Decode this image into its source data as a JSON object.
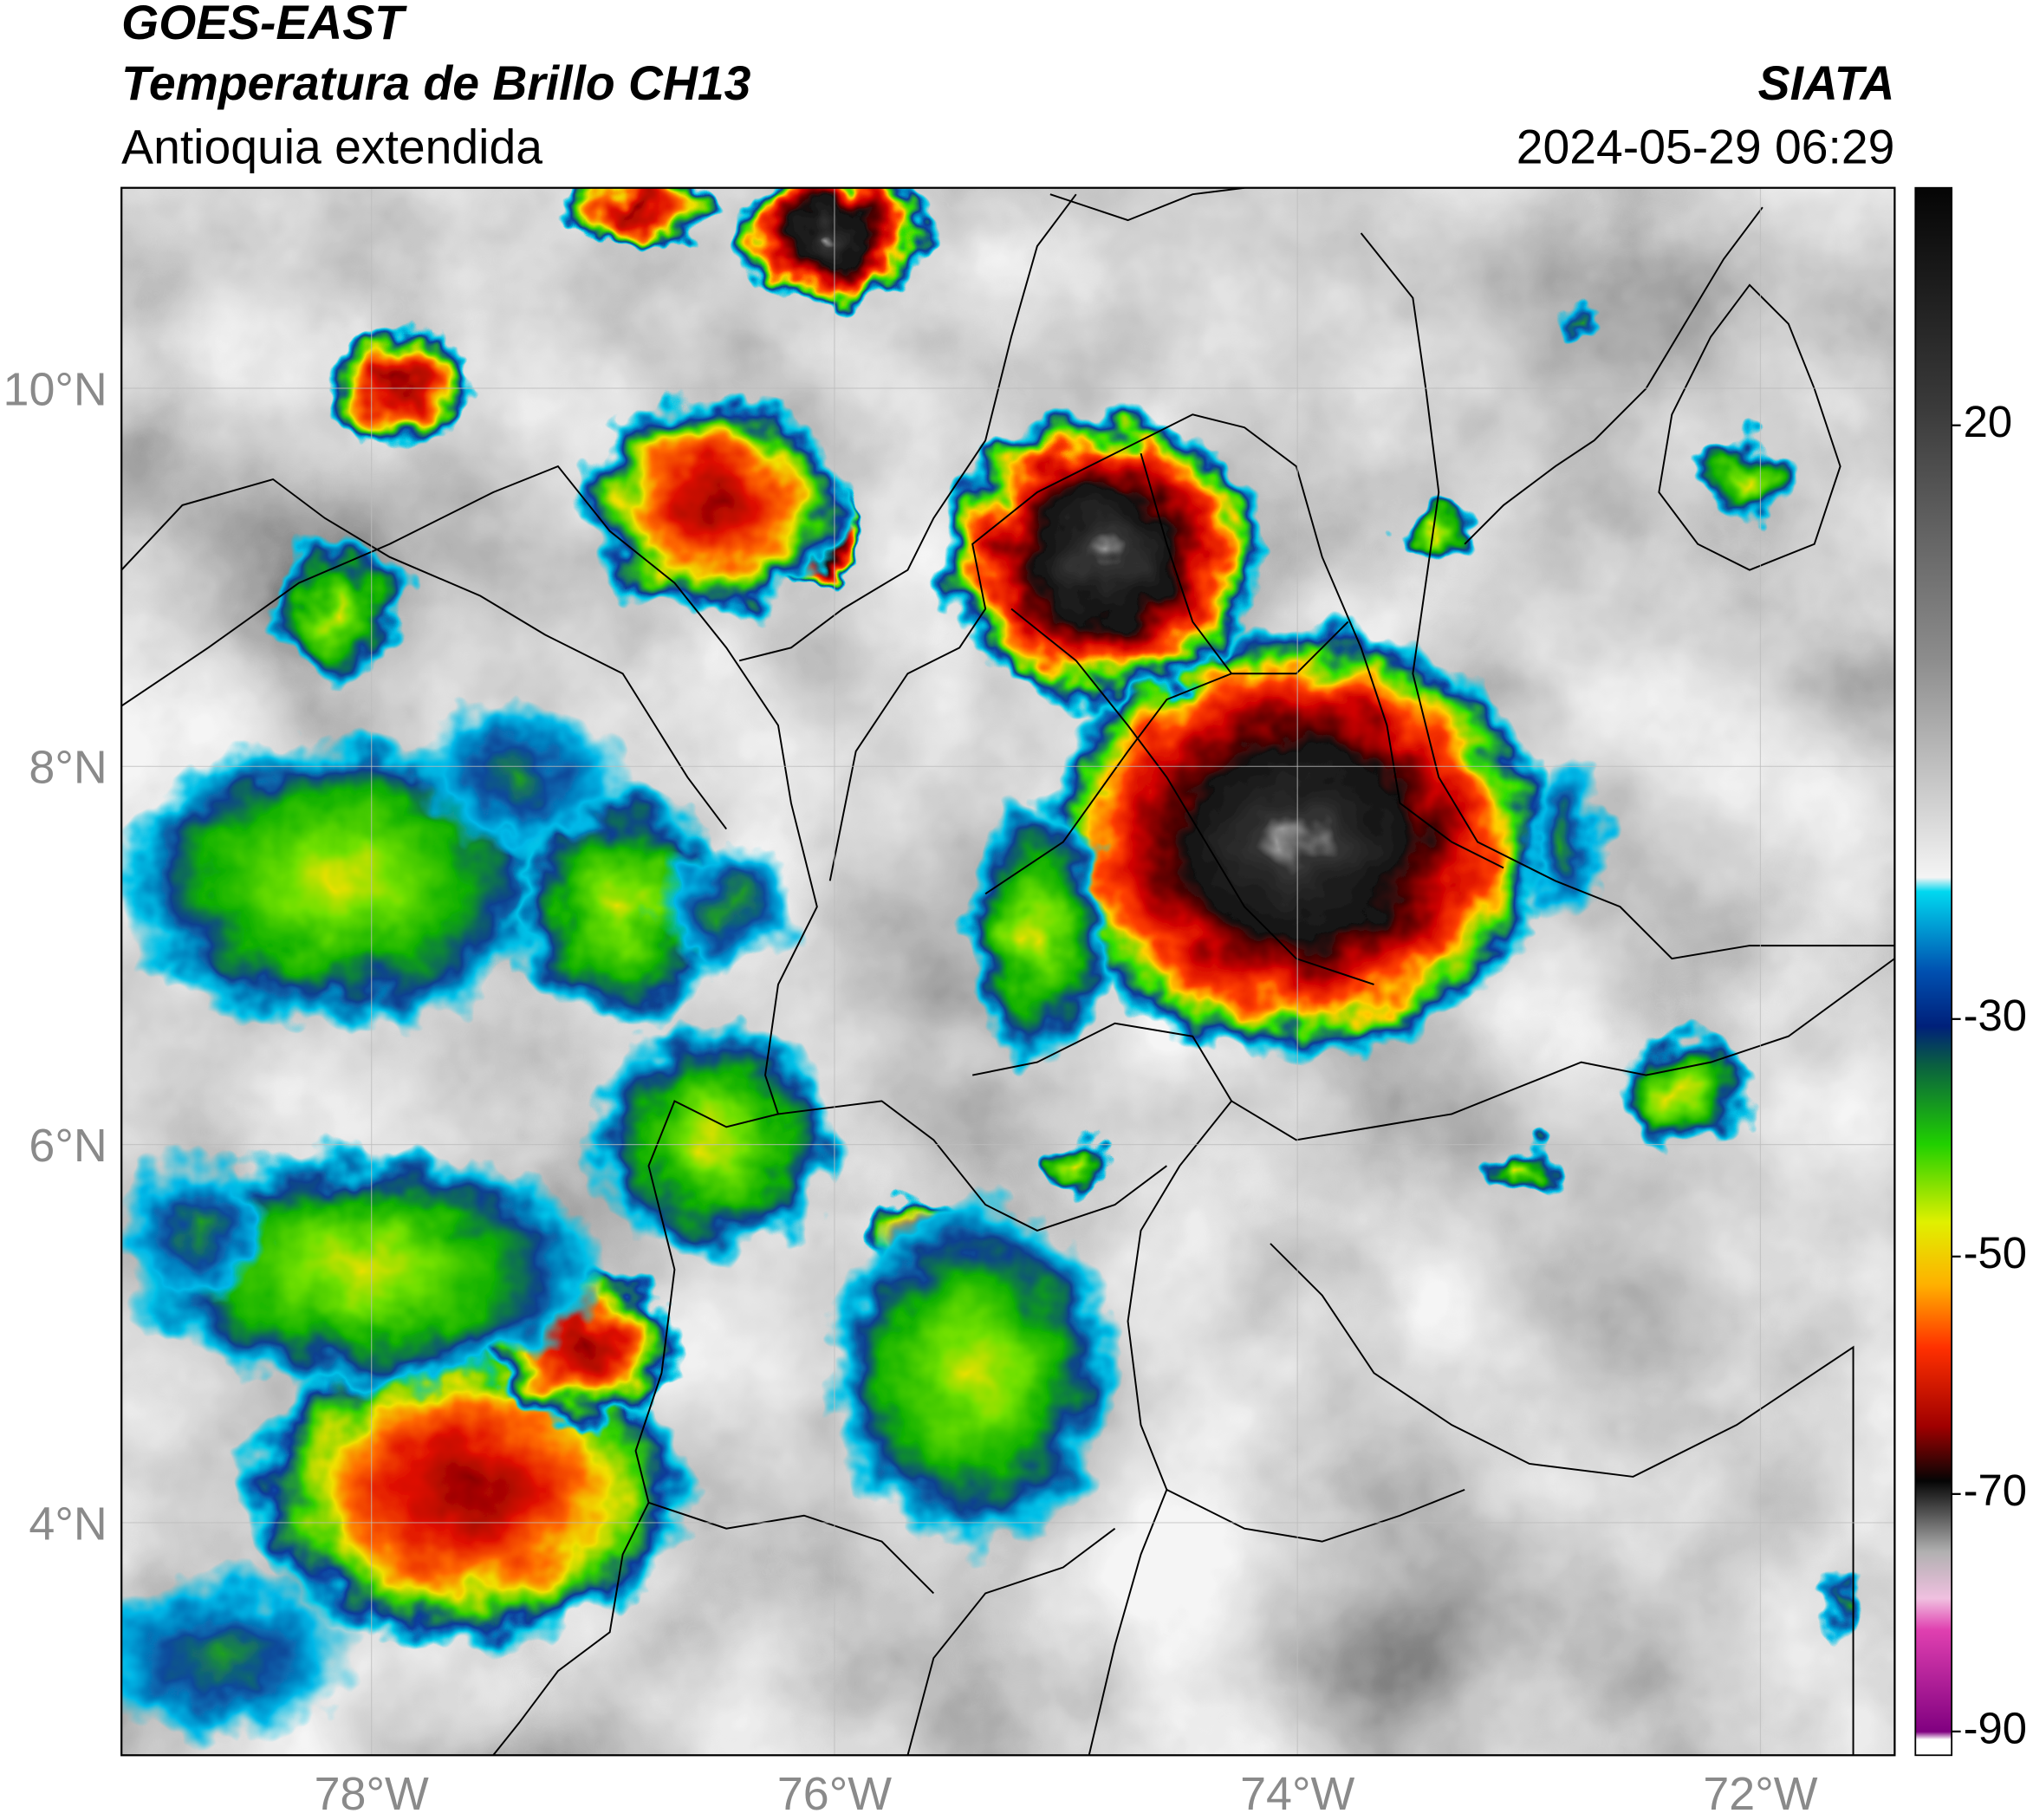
{
  "header": {
    "title": "GOES-EAST",
    "subtitle": "Temperatura de Brillo CH13",
    "region": "Antioquia extendida",
    "source": "SIATA",
    "timestamp": "2024-05-29 06:29"
  },
  "map": {
    "lonlim": [
      -79.08,
      -71.42
    ],
    "latlim": [
      2.77,
      11.06
    ],
    "grid": true,
    "lon_ticks": [
      {
        "value": -78,
        "label": "78°W"
      },
      {
        "value": -76,
        "label": "76°W"
      },
      {
        "value": -74,
        "label": "74°W"
      },
      {
        "value": -72,
        "label": "72°W"
      }
    ],
    "lat_ticks": [
      {
        "value": 4,
        "label": "4°N"
      },
      {
        "value": 6,
        "label": "6°N"
      },
      {
        "value": 8,
        "label": "8°N"
      },
      {
        "value": 10,
        "label": "10°N"
      }
    ]
  },
  "colorbar": {
    "lim": [
      -92,
      40
    ],
    "ticks": [
      -90,
      -70,
      -50,
      -30,
      20
    ]
  }
}
